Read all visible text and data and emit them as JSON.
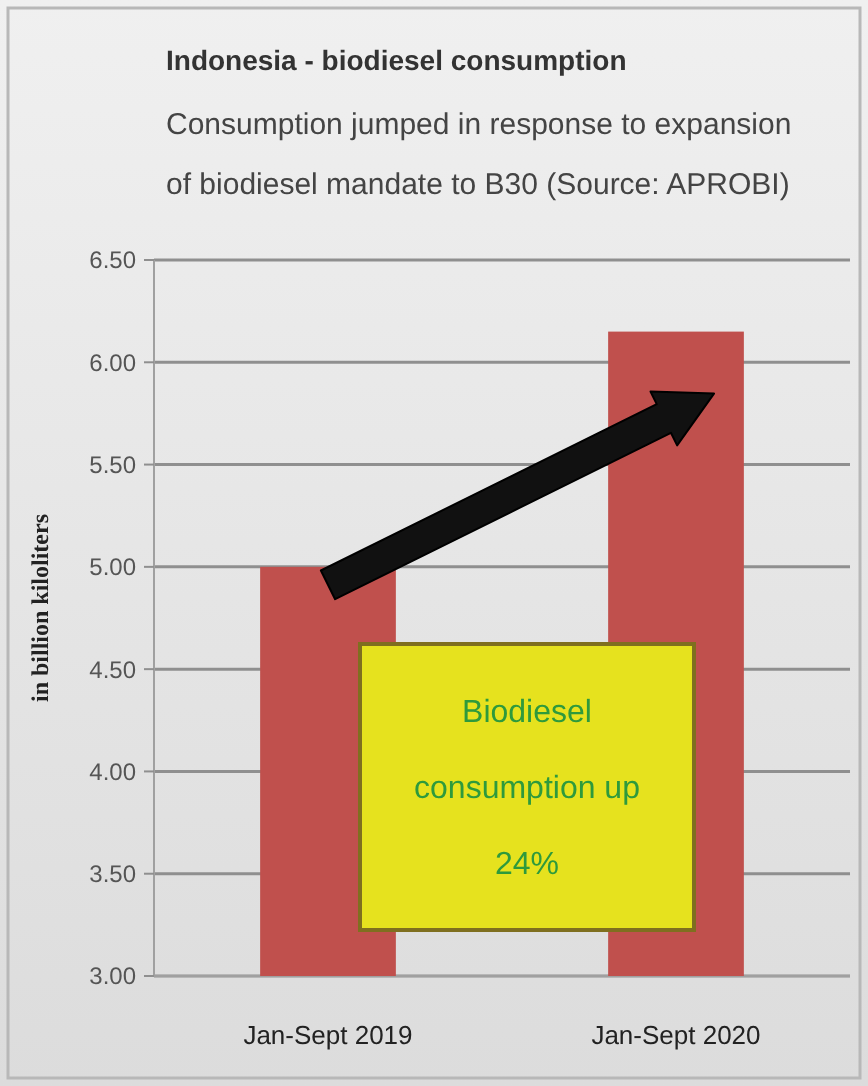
{
  "chart_data": {
    "type": "bar",
    "title": "Indonesia - biodiesel consumption",
    "subtitle": "Consumption jumped in response to expansion of biodiesel mandate to B30 (Source: APROBI)",
    "ylabel": "in billion kiloliters",
    "categories": [
      "Jan-Sept 2019",
      "Jan-Sept 2020"
    ],
    "values": [
      5.0,
      6.15
    ],
    "color": "#c0504d",
    "ylim": [
      3,
      6.5
    ],
    "yticks": [
      {
        "value": 3,
        "label": "3.00"
      },
      {
        "value": 3.5,
        "label": "3.50"
      },
      {
        "value": 4,
        "label": "4.00"
      },
      {
        "value": 4.5,
        "label": "4.50"
      },
      {
        "value": 5,
        "label": "5.00"
      },
      {
        "value": 5.5,
        "label": "5.50"
      },
      {
        "value": 6,
        "label": "6.00"
      },
      {
        "value": 6.5,
        "label": "6.50"
      }
    ],
    "grid": "y",
    "annotations": [
      "Biodiesel consumption up 24%"
    ]
  }
}
